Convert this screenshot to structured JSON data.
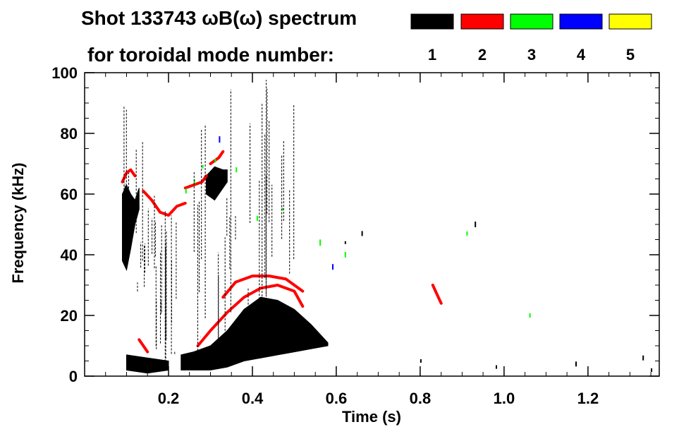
{
  "chart_data": {
    "type": "heatmap",
    "title_line1": "Shot 133743 ωB(ω) spectrum",
    "title_line2": "for toroidal mode number:",
    "xlabel": "Time (s)",
    "ylabel": "Frequency (kHz)",
    "xlim": [
      0.0,
      1.37
    ],
    "ylim": [
      0,
      100
    ],
    "x_ticks": [
      0.2,
      0.4,
      0.6,
      0.8,
      1.0,
      1.2
    ],
    "x_tick_labels": [
      "0.2",
      "0.4",
      "0.6",
      "0.8",
      "1.0",
      "1.2"
    ],
    "y_ticks": [
      0,
      20,
      40,
      60,
      80,
      100
    ],
    "y_tick_labels": [
      "0",
      "20",
      "40",
      "60",
      "80",
      "100"
    ],
    "x_minor_step": 0.05,
    "y_minor_step": 5,
    "grid": false,
    "legend_placement": "top-right",
    "legend": [
      {
        "label": "1",
        "color": "#000000"
      },
      {
        "label": "2",
        "color": "#ff0000"
      },
      {
        "label": "3",
        "color": "#00ff00"
      },
      {
        "label": "4",
        "color": "#0000ff"
      },
      {
        "label": "5",
        "color": "#ffff00"
      }
    ],
    "features": [
      {
        "mode": "1",
        "kind": "band",
        "t": [
          0.09,
          0.1,
          0.11,
          0.12,
          0.13
        ],
        "lo": [
          38,
          35,
          42,
          50,
          55
        ],
        "hi": [
          60,
          63,
          60,
          58,
          62
        ]
      },
      {
        "mode": "1",
        "kind": "band",
        "t": [
          0.23,
          0.26,
          0.3,
          0.34,
          0.38,
          0.42,
          0.46,
          0.5,
          0.54,
          0.58
        ],
        "lo": [
          2,
          2,
          2,
          3,
          5,
          6,
          7,
          8,
          9,
          10
        ],
        "hi": [
          7,
          8,
          10,
          15,
          22,
          26,
          25,
          22,
          17,
          11
        ]
      },
      {
        "mode": "1",
        "kind": "band",
        "t": [
          0.29,
          0.31,
          0.33,
          0.34
        ],
        "lo": [
          60,
          58,
          62,
          64
        ],
        "hi": [
          66,
          69,
          68,
          68
        ]
      },
      {
        "mode": "1",
        "kind": "band",
        "t": [
          0.1,
          0.15,
          0.2
        ],
        "lo": [
          2,
          1,
          2
        ],
        "hi": [
          7,
          6,
          5
        ]
      },
      {
        "mode": "2",
        "kind": "line",
        "t": [
          0.14,
          0.16,
          0.18,
          0.2,
          0.22,
          0.24
        ],
        "f": [
          61,
          58,
          54,
          53,
          56,
          57
        ]
      },
      {
        "mode": "2",
        "kind": "line",
        "t": [
          0.24,
          0.26,
          0.28,
          0.29
        ],
        "f": [
          62,
          63,
          64,
          66
        ]
      },
      {
        "mode": "2",
        "kind": "line",
        "t": [
          0.3,
          0.32,
          0.33
        ],
        "f": [
          70,
          72,
          74
        ]
      },
      {
        "mode": "2",
        "kind": "line",
        "t": [
          0.27,
          0.3,
          0.34,
          0.38,
          0.42,
          0.46,
          0.5,
          0.52
        ],
        "f": [
          10,
          15,
          21,
          26,
          29,
          30,
          28,
          23
        ]
      },
      {
        "mode": "2",
        "kind": "line",
        "t": [
          0.33,
          0.36,
          0.4,
          0.44,
          0.48,
          0.52
        ],
        "f": [
          26,
          31,
          33,
          33,
          32,
          28
        ]
      },
      {
        "mode": "2",
        "kind": "line",
        "t": [
          0.09,
          0.1,
          0.11,
          0.12
        ],
        "f": [
          64,
          67,
          68,
          66
        ]
      },
      {
        "mode": "2",
        "kind": "line",
        "t": [
          0.83,
          0.84,
          0.85
        ],
        "f": [
          30,
          27,
          24
        ]
      },
      {
        "mode": "2",
        "kind": "line",
        "t": [
          0.13,
          0.14,
          0.15
        ],
        "f": [
          12,
          10,
          8
        ]
      },
      {
        "mode": "3",
        "kind": "dots",
        "t": [
          0.24,
          0.26,
          0.28,
          0.31,
          0.36,
          0.41,
          0.47,
          0.56,
          0.62,
          0.91,
          1.06
        ],
        "f": [
          61,
          64,
          69,
          71,
          68,
          52,
          55,
          44,
          40,
          47,
          20
        ]
      },
      {
        "mode": "4",
        "kind": "dots",
        "t": [
          0.32,
          0.59
        ],
        "f": [
          78,
          36
        ]
      },
      {
        "mode": "1",
        "kind": "dots",
        "t": [
          0.62,
          0.66,
          0.8,
          0.93,
          0.98,
          1.17,
          1.33,
          1.35
        ],
        "f": [
          44,
          47,
          5,
          50,
          3,
          4,
          6,
          2
        ]
      }
    ]
  }
}
